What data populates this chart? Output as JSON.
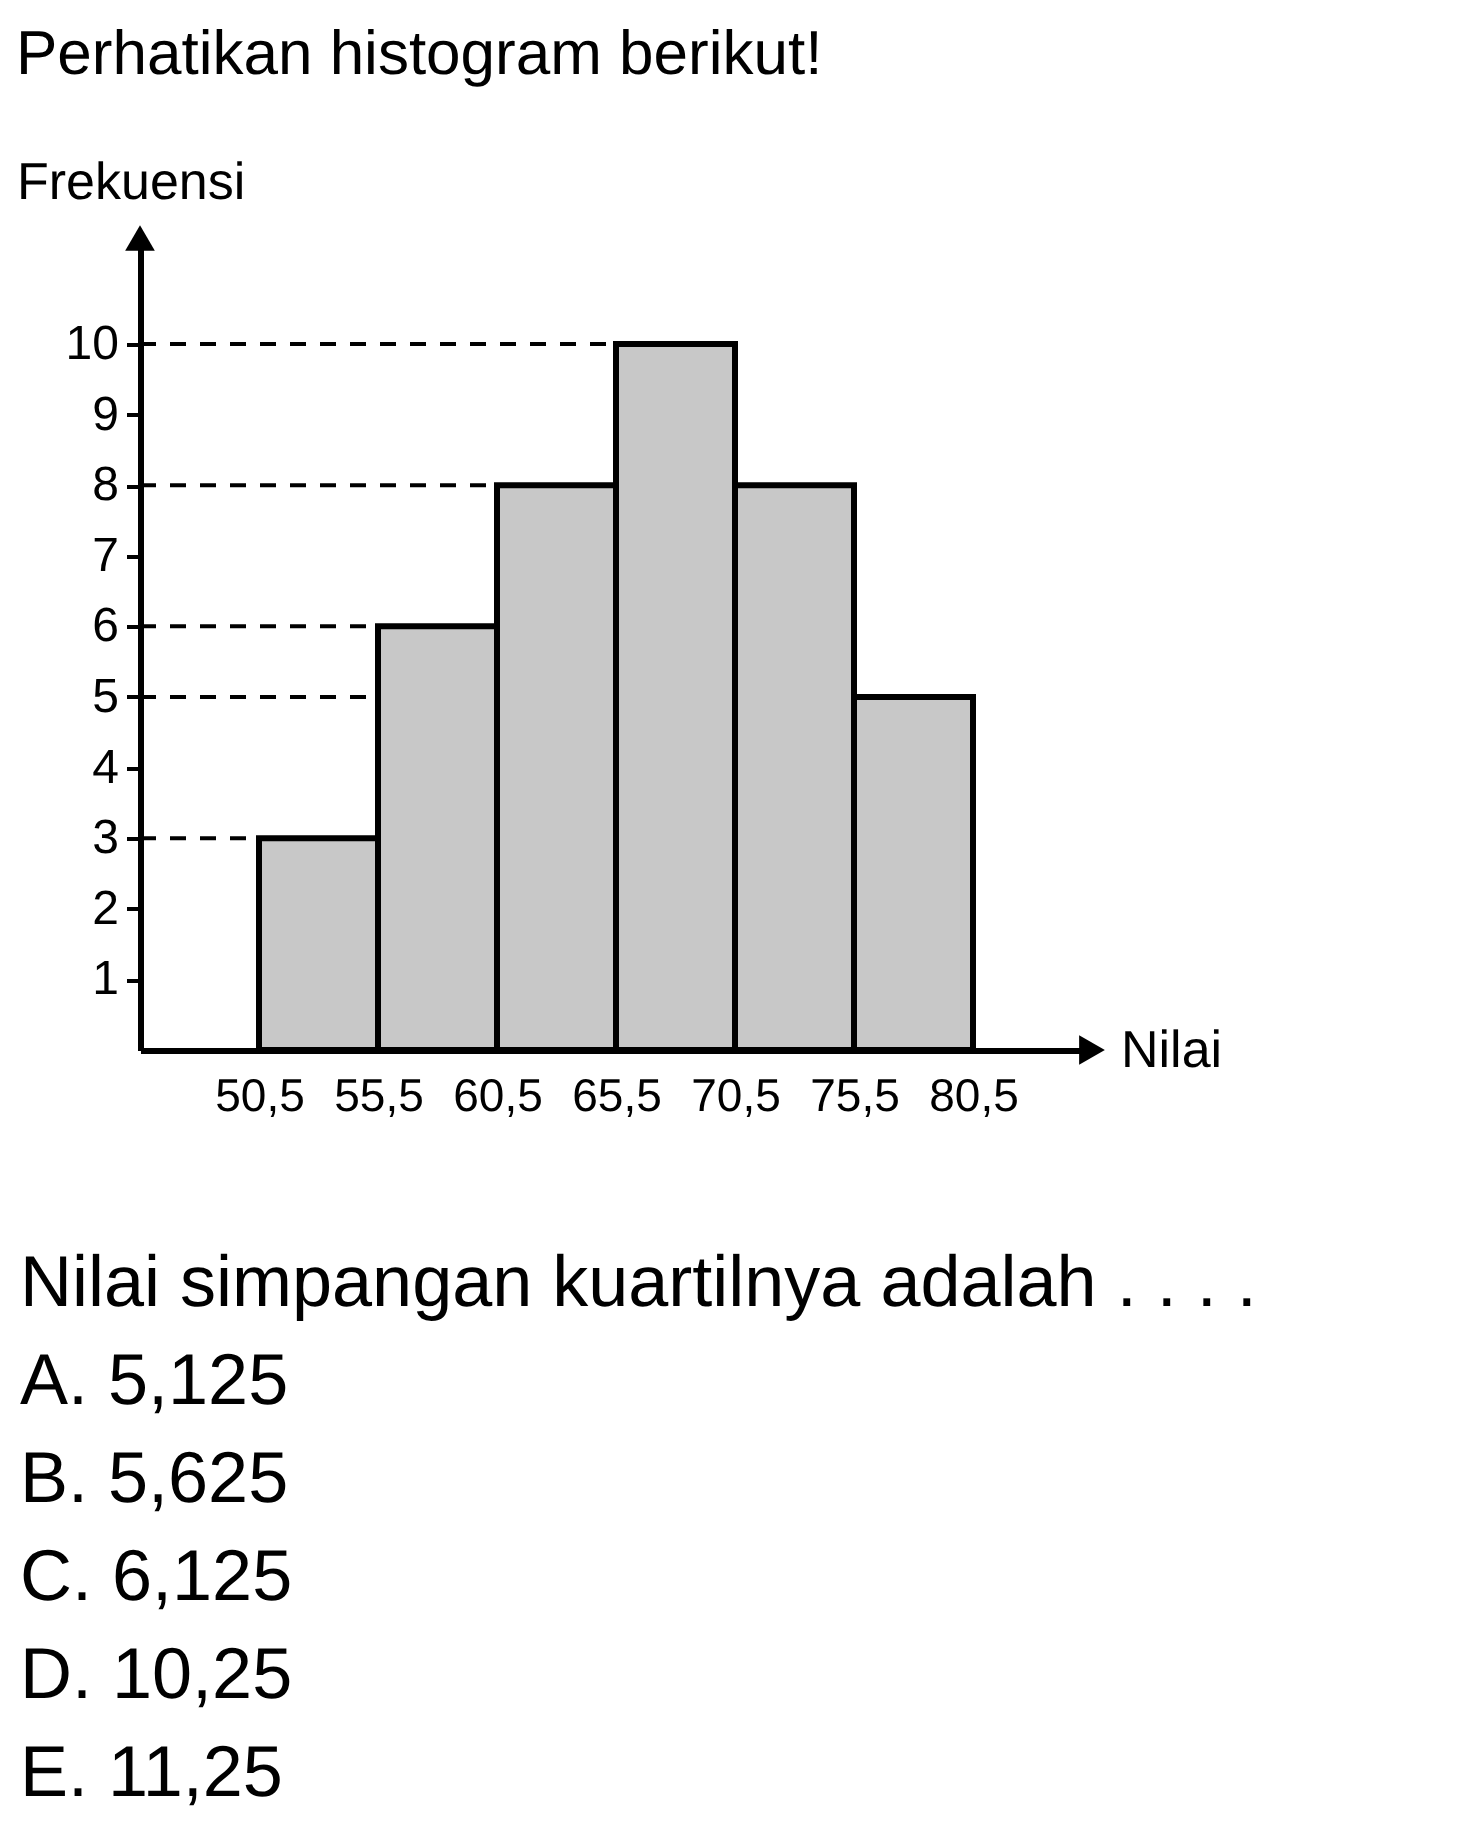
{
  "chart_data": {
    "type": "histogram",
    "title": "Perhatikan histogram berikut!",
    "xlabel": "Nilai",
    "ylabel": "Frekuensi",
    "bins": [
      50.5,
      55.5,
      60.5,
      65.5,
      70.5,
      75.5,
      80.5
    ],
    "values": [
      3,
      6,
      8,
      10,
      8,
      5
    ],
    "color": "#c8c8c8",
    "xlim": [
      45.5,
      85.5
    ],
    "ylim": [
      0,
      11.5
    ],
    "xticks": [
      {
        "value": 50.5,
        "label": "50,5"
      },
      {
        "value": 55.5,
        "label": "55,5"
      },
      {
        "value": 60.5,
        "label": "60,5"
      },
      {
        "value": 65.5,
        "label": "65,5"
      },
      {
        "value": 70.5,
        "label": "70,5"
      },
      {
        "value": 75.5,
        "label": "75,5"
      },
      {
        "value": 80.5,
        "label": "80,5"
      }
    ],
    "yticks": [
      1,
      2,
      3,
      4,
      5,
      6,
      7,
      8,
      9,
      10
    ],
    "ref_lines": [
      {
        "axis": "y",
        "value": 10,
        "color": "#000000",
        "line_style": "dashed"
      },
      {
        "axis": "y",
        "value": 8,
        "color": "#000000",
        "line_style": "dashed"
      },
      {
        "axis": "y",
        "value": 6,
        "color": "#000000",
        "line_style": "dashed"
      },
      {
        "axis": "y",
        "value": 5,
        "color": "#000000",
        "line_style": "dashed"
      },
      {
        "axis": "y",
        "value": 3,
        "color": "#000000",
        "line_style": "dashed"
      }
    ],
    "annotations": [
      "Nilai simpangan kuartilnya adalah . . . .",
      "A. 5,125",
      "B. 5,625",
      "C. 6,125",
      "D. 10,25",
      "E. 11,25"
    ]
  }
}
